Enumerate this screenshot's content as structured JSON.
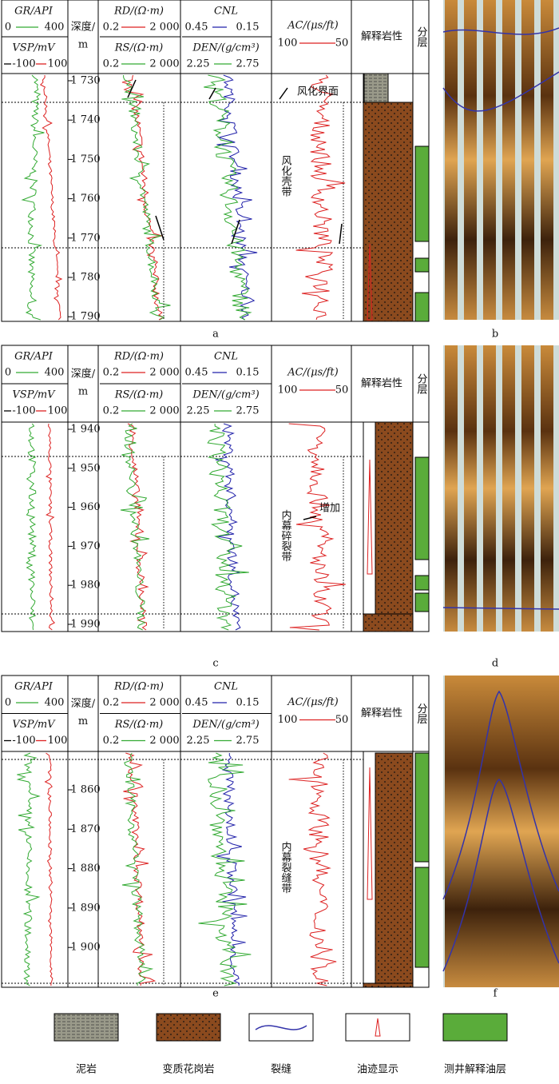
{
  "header": {
    "gr": "GR/API",
    "gr_min": "0",
    "gr_max": "400",
    "vsp": "VSP/mV",
    "vsp_min": "-100",
    "vsp_max": "100",
    "depth": "深度/",
    "depth_unit": "m",
    "rd": "RD/(Ω·m)",
    "rd_min": "0.2",
    "rd_max": "2 000",
    "rs": "RS/(Ω·m)",
    "rs_min": "0.2",
    "rs_max": "2 000",
    "cnl": "CNL",
    "cnl_min": "0.45",
    "cnl_max": "0.15",
    "den": "DEN/(g/cm³)",
    "den_min": "2.25",
    "den_max": "2.75",
    "ac": "AC/(μs/ft)",
    "ac_min": "100",
    "ac_max": "50",
    "lithology": "解释岩性",
    "layer": "分层"
  },
  "panels": [
    {
      "label": "a",
      "depth_ticks": [
        {
          "value": 1730,
          "label": "1 730"
        },
        {
          "value": 1740,
          "label": "1 740"
        },
        {
          "value": 1750,
          "label": "1 750"
        },
        {
          "value": 1760,
          "label": "1 760"
        },
        {
          "value": 1770,
          "label": "1 770"
        },
        {
          "value": 1780,
          "label": "1 780"
        },
        {
          "value": 1790,
          "label": "1 790"
        }
      ],
      "annotations": [
        "风化界面",
        "风化壳带"
      ]
    },
    {
      "label": "c",
      "depth_ticks": [
        {
          "value": 1940,
          "label": "1 940"
        },
        {
          "value": 1950,
          "label": "1 950"
        },
        {
          "value": 1960,
          "label": "1 960"
        },
        {
          "value": 1970,
          "label": "1 970"
        },
        {
          "value": 1980,
          "label": "1 980"
        },
        {
          "value": 1990,
          "label": "1 990"
        }
      ],
      "annotations": [
        "增加",
        "内幕碎裂带"
      ]
    },
    {
      "label": "e",
      "depth_ticks": [
        {
          "value": 1860,
          "label": "1 860"
        },
        {
          "value": 1870,
          "label": "1 870"
        },
        {
          "value": 1880,
          "label": "1 880"
        },
        {
          "value": 1890,
          "label": "1 890"
        },
        {
          "value": 1900,
          "label": "1 900"
        }
      ],
      "annotations": [
        "内幕裂缝带"
      ]
    }
  ],
  "image_labels": [
    "b",
    "d",
    "f"
  ],
  "legend": [
    "泥岩",
    "变质花岗岩",
    "裂缝",
    "油迹显示",
    "测井解释油层"
  ]
}
